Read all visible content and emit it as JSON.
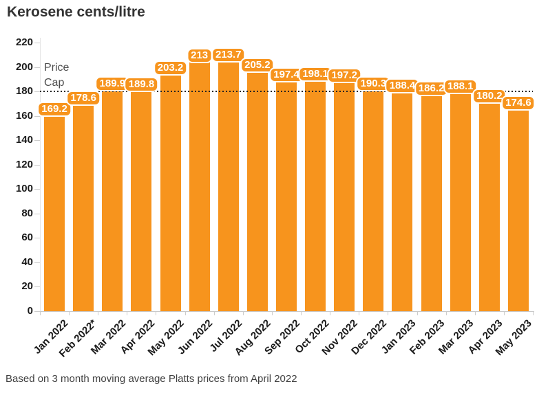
{
  "title": "Kerosene cents/litre",
  "footnote": "Based on 3 month moving average Platts prices from April 2022",
  "price_cap": {
    "label": "Price Cap",
    "value": 180
  },
  "colors": {
    "bar": "#F7941D",
    "bar_label_text": "#FFFFFF",
    "bar_label_border": "#FFFFFF",
    "title_text": "#333333",
    "cap_line": "#222222",
    "cap_label_text": "#4D4D4D",
    "axis": "#C9C9C9",
    "tick_label_text": "#1A1A1A",
    "footnote_text": "#404040"
  },
  "chart_data": {
    "type": "bar",
    "title": "Kerosene cents/litre",
    "categories": [
      "Jan 2022",
      "Feb 2022*",
      "Mar 2022",
      "Apr 2022",
      "May 2022",
      "Jun 2022",
      "Jul 2022",
      "Aug 2022",
      "Sep 2022",
      "Oct 2022",
      "Nov 2022",
      "Dec 2022",
      "Jan 2023",
      "Feb 2023",
      "Mar 2023",
      "Apr 2023",
      "May 2023"
    ],
    "values": [
      169.2,
      178.6,
      189.9,
      189.8,
      203.2,
      213,
      213.7,
      205.2,
      197.4,
      198.1,
      197.2,
      190.3,
      188.4,
      186.2,
      188.1,
      180.2,
      174.6
    ],
    "bar_value_labels": [
      "169.2",
      "178.6",
      "189.9",
      "189.8",
      "203.2",
      "213",
      "213.7",
      "205.2",
      "197.4",
      "198.1",
      "197.2",
      "190.3",
      "188.4",
      "186.2",
      "188.1",
      "180.2",
      "174.6"
    ],
    "xlabel": "",
    "ylabel": "",
    "ylim": [
      0,
      220
    ],
    "ytick_step": 20,
    "grid": false,
    "legend": false,
    "annotations": [
      {
        "type": "hline",
        "y": 180,
        "style": "dotted",
        "label": "Price Cap"
      }
    ]
  }
}
